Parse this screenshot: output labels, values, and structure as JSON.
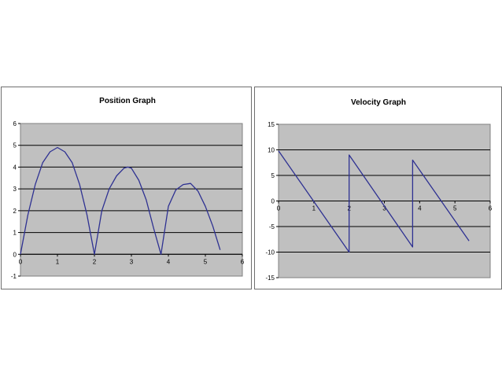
{
  "chart_data": [
    {
      "type": "line",
      "title": "Position Graph",
      "xlabel": "",
      "ylabel": "",
      "xlim": [
        0,
        6
      ],
      "ylim": [
        -1,
        6
      ],
      "x_ticks": [
        "0",
        "1",
        "2",
        "3",
        "4",
        "5",
        "6"
      ],
      "y_ticks": [
        "6",
        "5",
        "4",
        "3",
        "2",
        "1",
        "0",
        "-1"
      ],
      "grid": true,
      "legend": "none",
      "plot_background": "#c0c0c0",
      "line_color": "#2e3192",
      "series": [
        {
          "x": [
            0,
            0.2,
            0.4,
            0.6,
            0.8,
            1.0,
            1.2,
            1.4,
            1.6,
            1.8,
            2.0,
            2.2,
            2.4,
            2.6,
            2.8,
            2.9,
            3.0,
            3.2,
            3.4,
            3.6,
            3.8,
            4.0,
            4.2,
            4.4,
            4.6,
            4.8,
            5.0,
            5.2,
            5.4
          ],
          "values": [
            0,
            1.8,
            3.2,
            4.2,
            4.7,
            4.9,
            4.7,
            4.2,
            3.2,
            1.8,
            0,
            2.0,
            3.0,
            3.6,
            3.95,
            4.0,
            3.95,
            3.4,
            2.5,
            1.2,
            0,
            2.2,
            2.95,
            3.2,
            3.25,
            2.9,
            2.2,
            1.3,
            0.2
          ]
        }
      ]
    },
    {
      "type": "line",
      "title": "Velocity Graph",
      "xlabel": "",
      "ylabel": "",
      "xlim": [
        0,
        6
      ],
      "ylim": [
        -15,
        15
      ],
      "x_ticks": [
        "0",
        "1",
        "2",
        "3",
        "4",
        "5",
        "6"
      ],
      "y_ticks": [
        "15",
        "10",
        "5",
        "0",
        "-5",
        "-10",
        "-15"
      ],
      "grid": true,
      "legend": "none",
      "plot_background": "#c0c0c0",
      "line_color": "#2e3192",
      "series": [
        {
          "x": [
            0,
            2.0,
            2.0,
            3.8,
            3.8,
            5.4
          ],
          "values": [
            9.8,
            -10,
            9,
            -9,
            8,
            -7.8
          ]
        }
      ]
    }
  ]
}
